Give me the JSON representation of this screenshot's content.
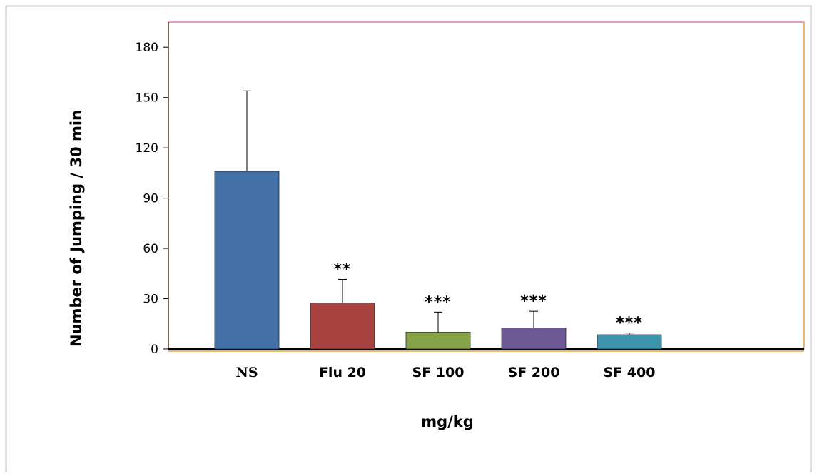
{
  "chart_data": {
    "type": "bar",
    "categories": [
      "NS",
      "Flu 20",
      "SF 100",
      "SF 200",
      "SF 400"
    ],
    "values": [
      106,
      27.5,
      10,
      12.5,
      8.5
    ],
    "error_bars": [
      48,
      14,
      12,
      10,
      1
    ],
    "significance": [
      "",
      "**",
      "***",
      "***",
      "***"
    ],
    "colors": [
      "#4472a8",
      "#a8423f",
      "#86a34a",
      "#6e5896",
      "#3d95ad"
    ],
    "ylabel": "Number of Jumping / 30 min",
    "xlabel": "mg/kg",
    "ylim": [
      0,
      195
    ],
    "yticks": [
      0,
      30,
      60,
      90,
      120,
      150,
      180
    ],
    "grid": false
  }
}
